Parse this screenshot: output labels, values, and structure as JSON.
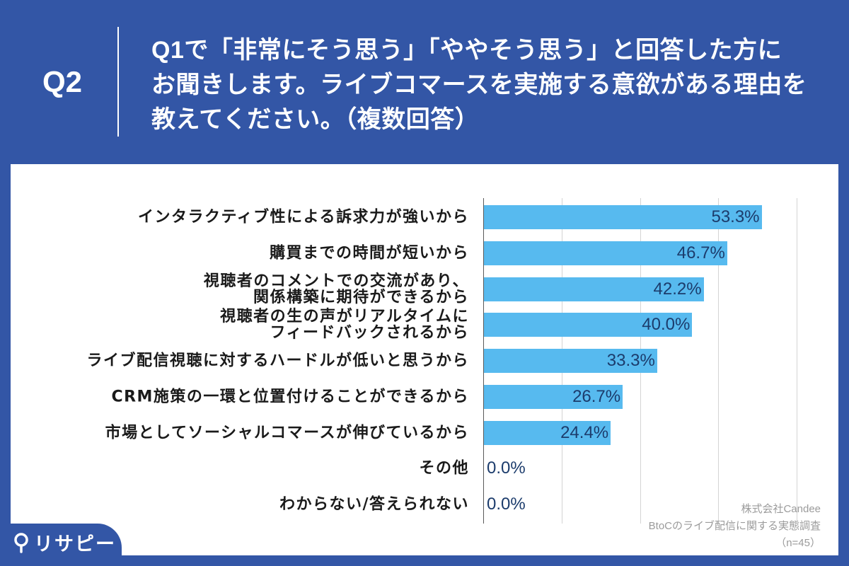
{
  "header": {
    "question_number": "Q2",
    "question_lines": [
      "Q1で「非常にそう思う」「ややそう思う」と回答した方に",
      "お聞きします。ライブコマースを実施する意欲がある理由を",
      "教えてください。（複数回答）"
    ]
  },
  "chart_data": {
    "type": "bar",
    "orientation": "horizontal",
    "categories": [
      "インタラクティブ性による訴求力が強いから",
      "購買までの時間が短いから",
      "視聴者のコメントでの交流があり、\n関係構築に期待ができるから",
      "視聴者の生の声がリアルタイムに\nフィードバックされるから",
      "ライブ配信視聴に対するハードルが低いと思うから",
      "CRM施策の一環と位置付けることができるから",
      "市場としてソーシャルコマースが伸びているから",
      "その他",
      "わからない/答えられない"
    ],
    "values": [
      53.3,
      46.7,
      42.2,
      40.0,
      33.3,
      26.7,
      24.4,
      0.0,
      0.0
    ],
    "data_labels": [
      "53.3%",
      "46.7%",
      "42.2%",
      "40.0%",
      "33.3%",
      "26.7%",
      "24.4%",
      "0.0%",
      "0.0%"
    ],
    "xlim": [
      0,
      60
    ],
    "gridlines": [
      15,
      30,
      45,
      60
    ],
    "grid": true,
    "bar_color": "#57baef",
    "data_label_color": "#1c3c6c"
  },
  "source": {
    "lines": [
      "株式会社Candee",
      "BtoCのライブ配信に関する実態調査",
      "（n=45）"
    ]
  },
  "logo": {
    "text": "リサピー",
    "icon": "map-pin-icon"
  },
  "colors": {
    "background": "#3356a6",
    "card": "#ffffff",
    "category_text": "#1a1a1a",
    "source_text": "#9b9b9b",
    "gridline": "#d4d4d4"
  }
}
